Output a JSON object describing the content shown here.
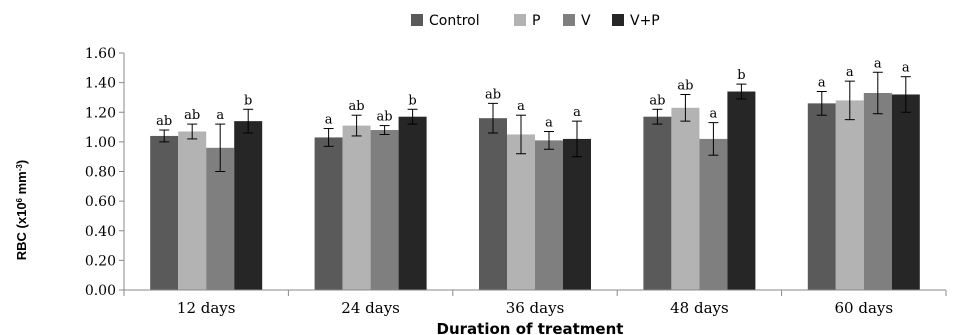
{
  "chart_data": {
    "type": "bar",
    "title": "",
    "xlabel": "Duration  of treatment",
    "ylabel": {
      "main": "RBC (x10",
      "sup": "6",
      "rest": " mm",
      "sup2": "-3",
      "end": ")"
    },
    "ylim": [
      0,
      1.6
    ],
    "yticks": [
      "0.00",
      "0.20",
      "0.40",
      "0.60",
      "0.80",
      "1.00",
      "1.20",
      "1.40",
      "1.60"
    ],
    "ytick_values": [
      0,
      0.2,
      0.4,
      0.6,
      0.8,
      1.0,
      1.2,
      1.4,
      1.6
    ],
    "categories": [
      "12 days",
      "24 days",
      "36 days",
      "48 days",
      "60 days"
    ],
    "legend_position": "top-center",
    "series": [
      {
        "name": "Control",
        "color": "#5a5a5a",
        "values": [
          1.04,
          1.03,
          1.16,
          1.17,
          1.26
        ],
        "errors": [
          0.04,
          0.06,
          0.1,
          0.05,
          0.08
        ],
        "labels": [
          "ab",
          "a",
          "ab",
          "ab",
          "a"
        ]
      },
      {
        "name": "P",
        "color": "#b3b3b3",
        "values": [
          1.07,
          1.11,
          1.05,
          1.23,
          1.28
        ],
        "errors": [
          0.05,
          0.07,
          0.13,
          0.09,
          0.13
        ],
        "labels": [
          "ab",
          "ab",
          "a",
          "ab",
          "a"
        ]
      },
      {
        "name": "V",
        "color": "#7f7f7f",
        "values": [
          0.96,
          1.08,
          1.01,
          1.02,
          1.33
        ],
        "errors": [
          0.16,
          0.03,
          0.06,
          0.11,
          0.14
        ],
        "labels": [
          "a",
          "ab",
          "a",
          "a",
          "a"
        ]
      },
      {
        "name": "V+P",
        "color": "#262626",
        "values": [
          1.14,
          1.17,
          1.02,
          1.34,
          1.32
        ],
        "errors": [
          0.08,
          0.05,
          0.12,
          0.05,
          0.12
        ],
        "labels": [
          "b",
          "b",
          "a",
          "b",
          "a"
        ]
      }
    ]
  }
}
